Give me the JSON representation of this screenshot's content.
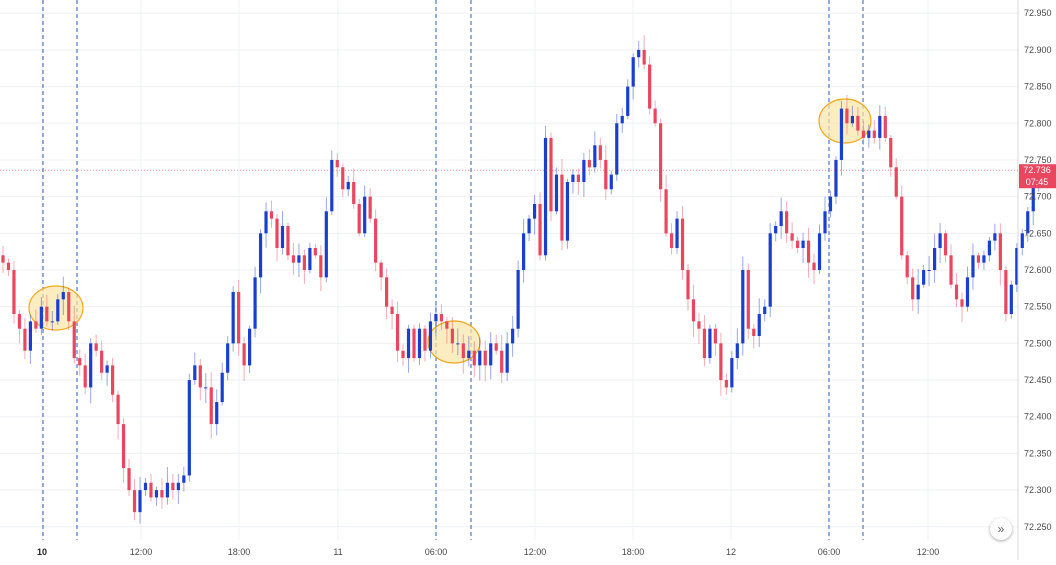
{
  "chart_data": {
    "type": "candlestick",
    "price_axis": {
      "ticks": [
        72.95,
        72.9,
        72.85,
        72.8,
        72.75,
        72.7,
        72.65,
        72.6,
        72.55,
        72.5,
        72.45,
        72.4,
        72.35,
        72.3,
        72.25
      ],
      "tick_labels": [
        "72.950",
        "72.900",
        "72.850",
        "72.800",
        "72.750",
        "72.700",
        "72.650",
        "72.600",
        "72.550",
        "72.500",
        "72.450",
        "72.400",
        "72.350",
        "72.300",
        "72.250"
      ],
      "range": [
        72.232,
        72.968
      ]
    },
    "time_axis": {
      "labels": [
        {
          "text": "10",
          "bold": true
        },
        {
          "text": "12:00",
          "bold": false
        },
        {
          "text": "18:00",
          "bold": false
        },
        {
          "text": "11",
          "bold": false
        },
        {
          "text": "06:00",
          "bold": false
        },
        {
          "text": "12:00",
          "bold": false
        },
        {
          "text": "18:00",
          "bold": false
        },
        {
          "text": "12",
          "bold": false
        },
        {
          "text": "06:00",
          "bold": false
        },
        {
          "text": "12:00",
          "bold": false
        }
      ]
    },
    "last_price": {
      "value": "72.736",
      "countdown": "07:45"
    },
    "colors": {
      "up": "#1a3fcf",
      "down": "#e8475f",
      "grid": "#eef0f3",
      "session_line": "#2d5bbf",
      "highlight_fill": "#fbe6a6",
      "highlight_stroke": "#f0a81c",
      "last_price_bg": "#e8475f"
    },
    "grid": true,
    "closes": [
      72.61,
      72.6,
      72.54,
      72.52,
      72.49,
      72.53,
      72.52,
      72.55,
      72.53,
      72.53,
      72.56,
      72.57,
      72.53,
      72.48,
      72.47,
      72.44,
      72.5,
      72.49,
      72.46,
      72.47,
      72.43,
      72.39,
      72.33,
      72.3,
      72.27,
      72.3,
      72.31,
      72.29,
      72.3,
      72.29,
      72.31,
      72.3,
      72.31,
      72.32,
      72.45,
      72.47,
      72.44,
      72.44,
      72.39,
      72.42,
      72.46,
      72.5,
      72.57,
      72.5,
      72.47,
      72.52,
      72.59,
      72.65,
      72.68,
      72.67,
      72.63,
      72.66,
      72.62,
      72.61,
      72.62,
      72.6,
      72.63,
      72.62,
      72.59,
      72.68,
      72.75,
      72.74,
      72.71,
      72.72,
      72.69,
      72.65,
      72.7,
      72.67,
      72.61,
      72.59,
      72.55,
      72.54,
      72.49,
      72.48,
      72.52,
      72.48,
      72.52,
      72.49,
      72.53,
      72.54,
      72.53,
      72.52,
      72.5,
      72.5,
      72.48,
      72.49,
      72.47,
      72.49,
      72.47,
      72.5,
      72.49,
      72.46,
      72.5,
      72.52,
      72.6,
      72.65,
      72.67,
      72.69,
      72.62,
      72.78,
      72.68,
      72.73,
      72.64,
      72.72,
      72.73,
      72.72,
      72.75,
      72.74,
      72.77,
      72.75,
      72.71,
      72.73,
      72.8,
      72.81,
      72.85,
      72.89,
      72.9,
      72.88,
      72.82,
      72.8,
      72.71,
      72.65,
      72.63,
      72.67,
      72.6,
      72.56,
      72.53,
      72.52,
      72.48,
      72.52,
      72.5,
      72.45,
      72.44,
      72.48,
      72.5,
      72.6,
      72.52,
      72.51,
      72.54,
      72.55,
      72.65,
      72.66,
      72.68,
      72.65,
      72.64,
      72.63,
      72.64,
      72.61,
      72.6,
      72.65,
      72.68,
      72.7,
      72.75,
      72.82,
      72.8,
      72.81,
      72.79,
      72.78,
      72.79,
      72.78,
      72.81,
      72.78,
      72.74,
      72.7,
      72.62,
      72.59,
      72.56,
      72.58,
      72.6,
      72.6,
      72.63,
      72.65,
      72.62,
      72.58,
      72.56,
      72.55,
      72.59,
      72.62,
      72.61,
      72.62,
      72.64,
      72.65,
      72.6,
      72.54,
      72.58,
      72.63,
      72.65,
      72.68,
      72.72,
      72.736
    ]
  },
  "ui": {
    "scroll_button_icon": "double-chevron-right-icon",
    "scroll_button_glyph": "»"
  }
}
